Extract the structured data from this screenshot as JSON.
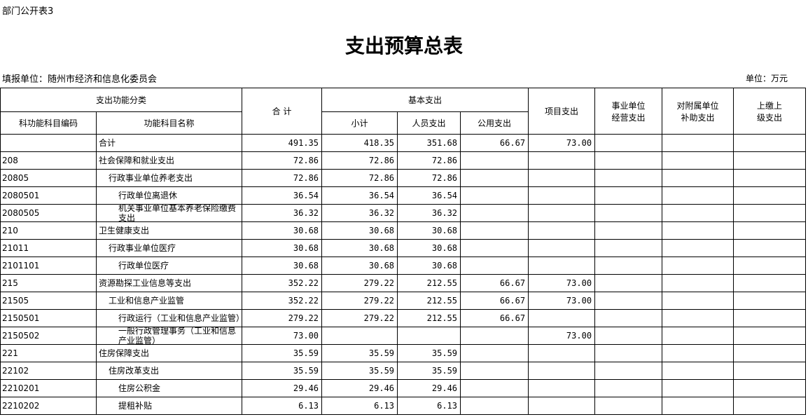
{
  "header": {
    "note": "部门公开表3",
    "title": "支出预算总表",
    "unit_label": "填报单位：随州市经济和信息化委员会",
    "unit": "单位：万元"
  },
  "table": {
    "columns": {
      "classification": "支出功能分类",
      "code": "科功能科目编码",
      "name": "功能科目名称",
      "total": "合 计",
      "basic": "基本支出",
      "subtotal": "小计",
      "personnel": "人员支出",
      "public": "公用支出",
      "project": "项目支出",
      "business": "事业单位经营支出",
      "subsidy": "对附属单位补助支出",
      "remit": "上缴上级支出"
    },
    "rows": [
      [
        null,
        "合计",
        "491.35",
        "418.35",
        "351.68",
        "66.67",
        "73.00"
      ],
      [
        "208",
        "社会保障和就业支出",
        "72.86",
        "72.86",
        "72.86",
        null,
        null
      ],
      [
        "20805",
        "行政事业单位养老支出",
        "72.86",
        "72.86",
        "72.86",
        null,
        null
      ],
      [
        "2080501",
        "行政单位离退休",
        "36.54",
        "36.54",
        "36.54",
        null,
        null
      ],
      [
        "2080505",
        "机关事业单位基本养老保险缴费支出",
        "36.32",
        "36.32",
        "36.32",
        null,
        null
      ],
      [
        "210",
        "卫生健康支出",
        "30.68",
        "30.68",
        "30.68",
        null,
        null
      ],
      [
        "21011",
        "行政事业单位医疗",
        "30.68",
        "30.68",
        "30.68",
        null,
        null
      ],
      [
        "2101101",
        "行政单位医疗",
        "30.68",
        "30.68",
        "30.68",
        null,
        null
      ],
      [
        "215",
        "资源勘探工业信息等支出",
        "352.22",
        "279.22",
        "212.55",
        "66.67",
        "73.00"
      ],
      [
        "21505",
        "工业和信息产业监管",
        "352.22",
        "279.22",
        "212.55",
        "66.67",
        "73.00"
      ],
      [
        "2150501",
        "行政运行（工业和信息产业监管）",
        "279.22",
        "279.22",
        "212.55",
        "66.67",
        null
      ],
      [
        "2150502",
        "一般行政管理事务（工业和信息产业监管）",
        "73.00",
        null,
        null,
        null,
        "73.00"
      ],
      [
        "221",
        "住房保障支出",
        "35.59",
        "35.59",
        "35.59",
        null,
        null
      ],
      [
        "22102",
        "住房改革支出",
        "35.59",
        "35.59",
        "35.59",
        null,
        null
      ],
      [
        "2210201",
        "住房公积金",
        "29.46",
        "29.46",
        "29.46",
        null,
        null
      ],
      [
        "2210202",
        "提租补贴",
        "6.13",
        "6.13",
        "6.13",
        null,
        null
      ]
    ]
  }
}
